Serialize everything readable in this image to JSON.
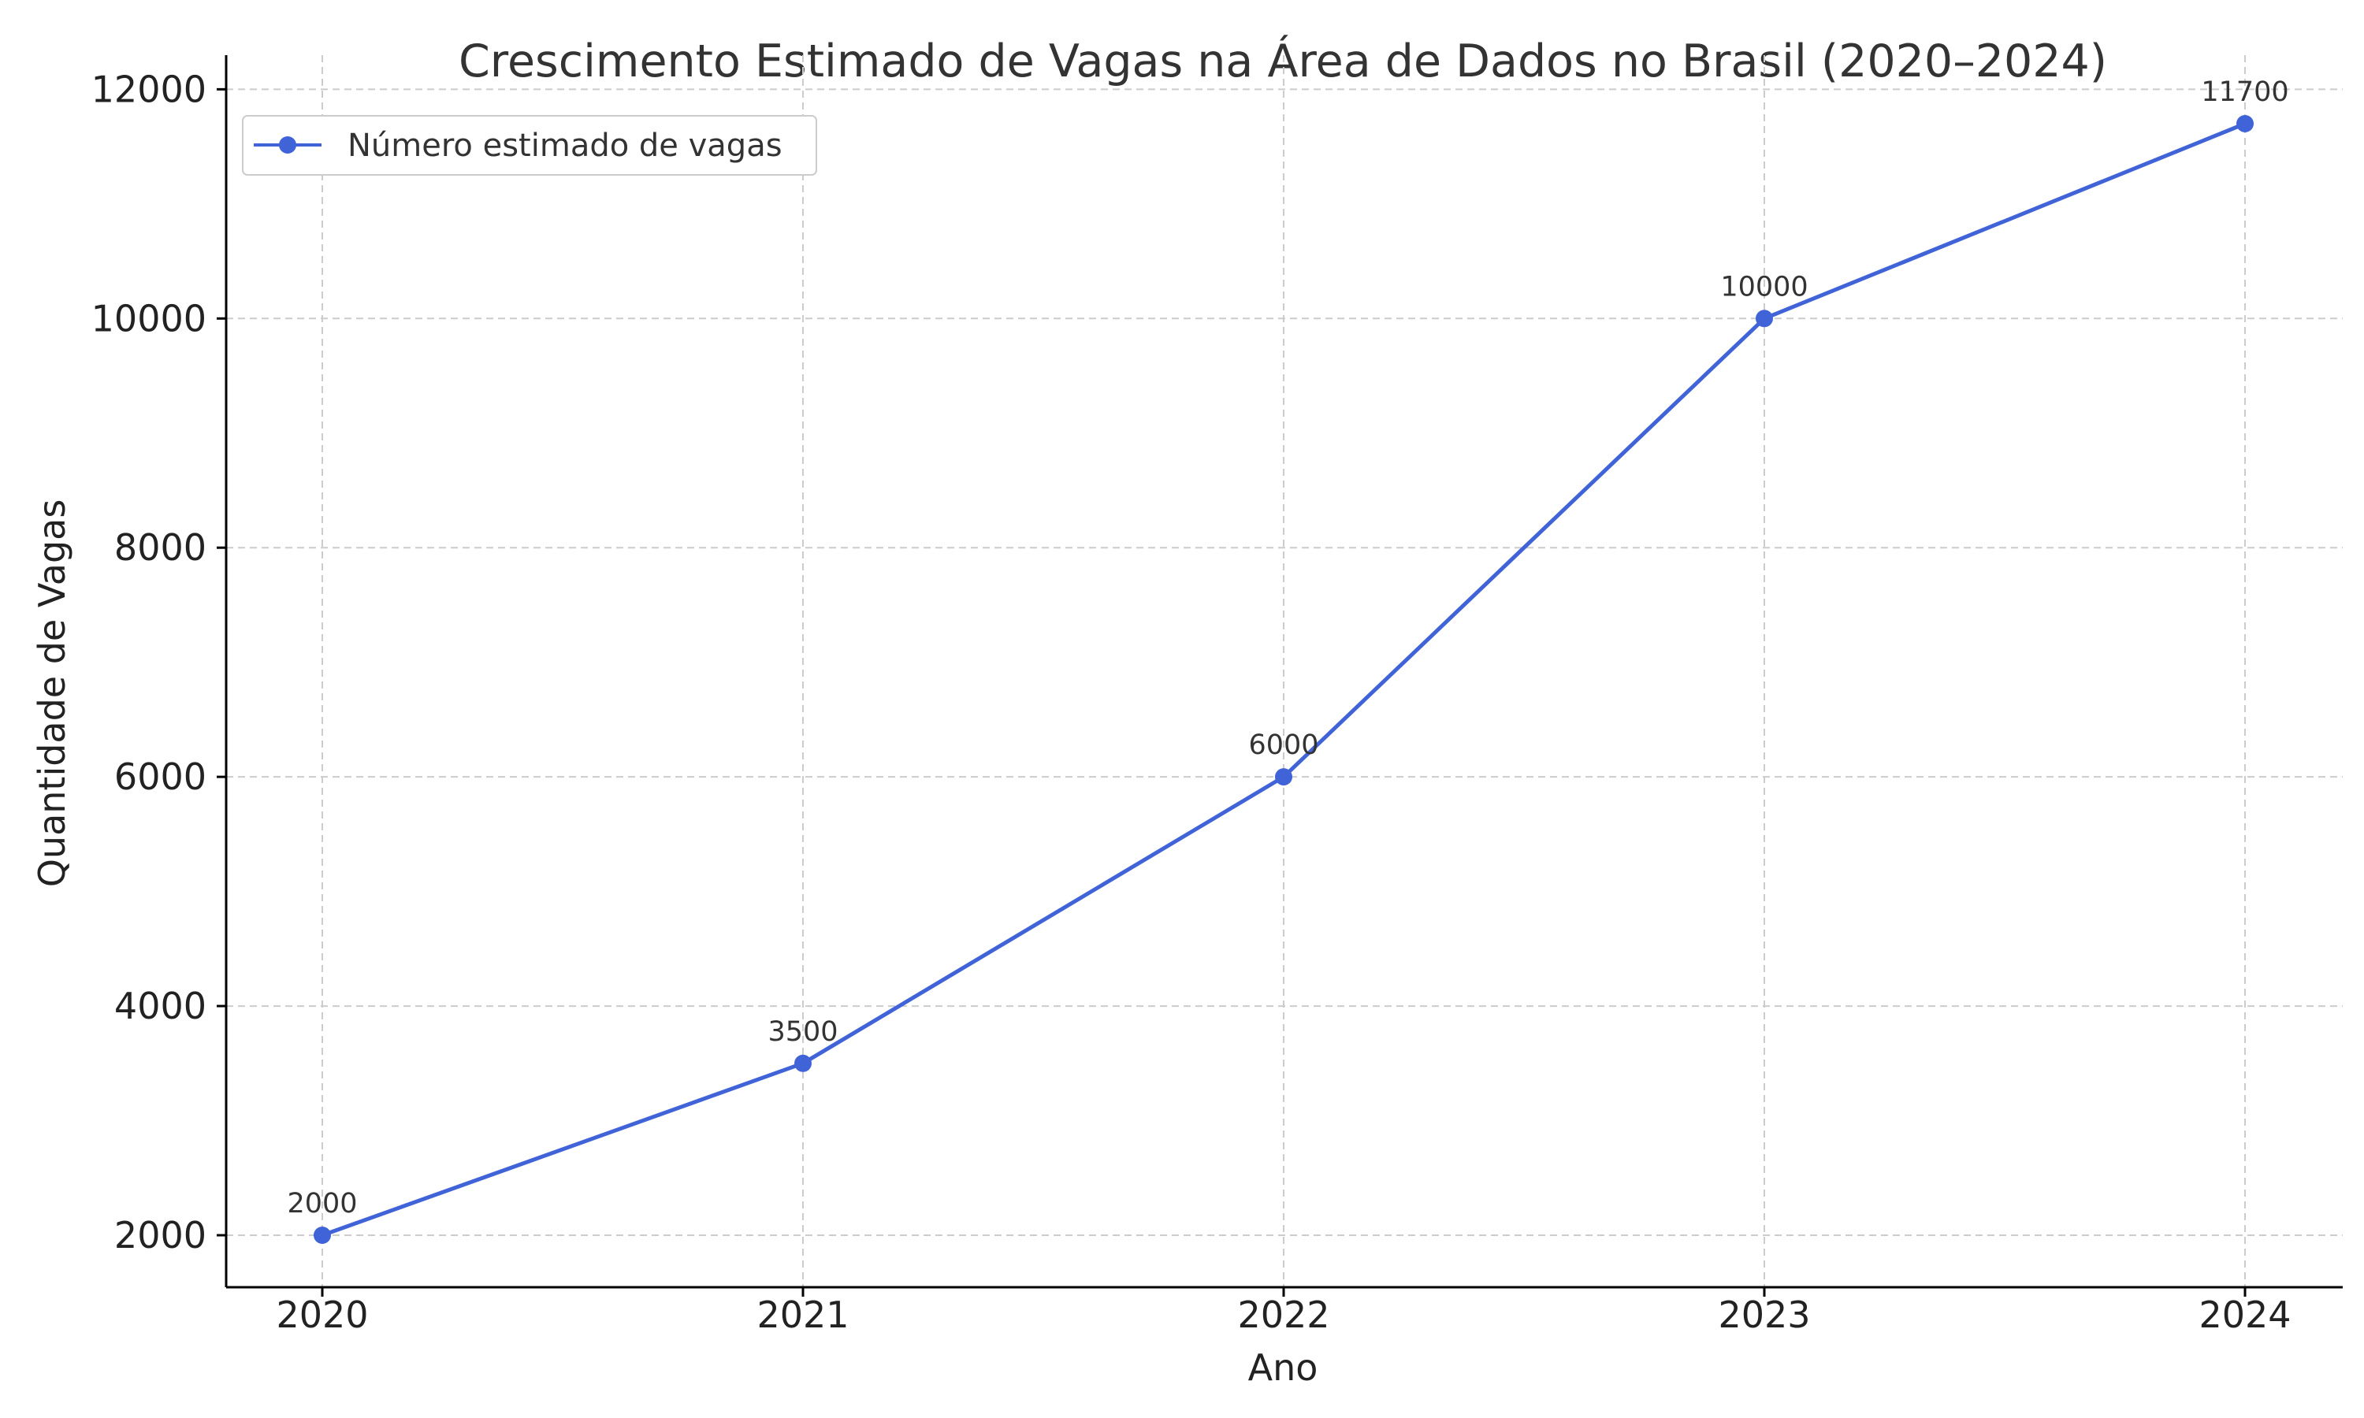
{
  "chart_data": {
    "type": "line",
    "title": "Crescimento Estimado de Vagas na Área de Dados no Brasil (2020–2024)",
    "xlabel": "Ano",
    "ylabel": "Quantidade de Vagas",
    "x": [
      "2020",
      "2021",
      "2022",
      "2023",
      "2024"
    ],
    "ylim": [
      1500,
      12400
    ],
    "yticks": [
      2000,
      4000,
      6000,
      8000,
      10000,
      12000
    ],
    "grid": true,
    "legend_position": "top-left",
    "series": [
      {
        "name": "Número estimado de vagas",
        "values": [
          2000,
          3500,
          6000,
          10000,
          11700
        ],
        "color": "#4063d8",
        "marker": "circle"
      }
    ],
    "data_labels": [
      "2000",
      "3500",
      "6000",
      "10000",
      "11700"
    ]
  }
}
